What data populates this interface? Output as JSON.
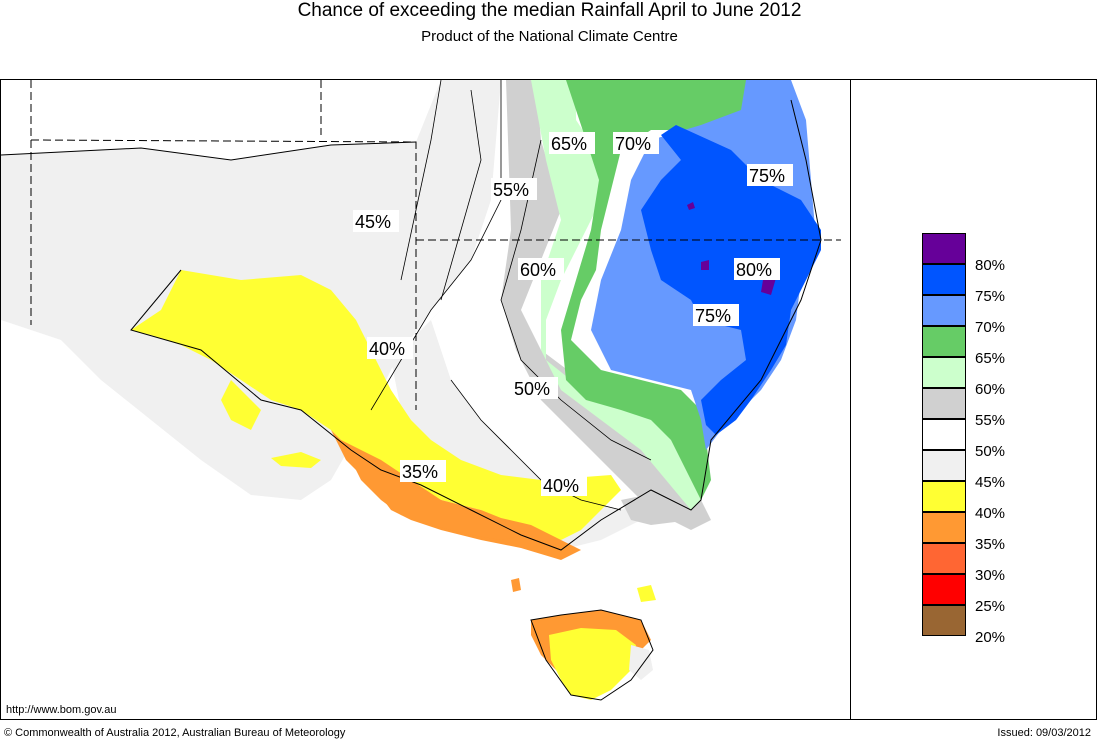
{
  "title": "Chance of exceeding the median Rainfall April to June 2012",
  "subtitle": "Product of the National Climate Centre",
  "url": "http://www.bom.gov.au",
  "copyright": "© Commonwealth of Australia 2012, Australian Bureau of Meteorology",
  "issued": "Issued: 09/03/2012",
  "legend": [
    {
      "label": "80%",
      "color": "#660099"
    },
    {
      "label": "75%",
      "color": "#0055ff"
    },
    {
      "label": "70%",
      "color": "#6699ff"
    },
    {
      "label": "65%",
      "color": "#66cc66"
    },
    {
      "label": "60%",
      "color": "#ccffcc"
    },
    {
      "label": "55%",
      "color": "#d0d0d0"
    },
    {
      "label": "50%",
      "color": "#ffffff"
    },
    {
      "label": "45%",
      "color": "#f0f0f0"
    },
    {
      "label": "40%",
      "color": "#ffff33"
    },
    {
      "label": "35%",
      "color": "#ff9933"
    },
    {
      "label": "30%",
      "color": "#ff6633"
    },
    {
      "label": "25%",
      "color": "#ff0000"
    },
    {
      "label": "20%",
      "color": "#996633"
    }
  ],
  "contour_labels": [
    {
      "text": "65%"
    },
    {
      "text": "70%"
    },
    {
      "text": "75%"
    },
    {
      "text": "55%"
    },
    {
      "text": "45%"
    },
    {
      "text": "60%"
    },
    {
      "text": "80%"
    },
    {
      "text": "75%"
    },
    {
      "text": "40%"
    },
    {
      "text": "50%"
    },
    {
      "text": "35%"
    },
    {
      "text": "40%"
    }
  ]
}
